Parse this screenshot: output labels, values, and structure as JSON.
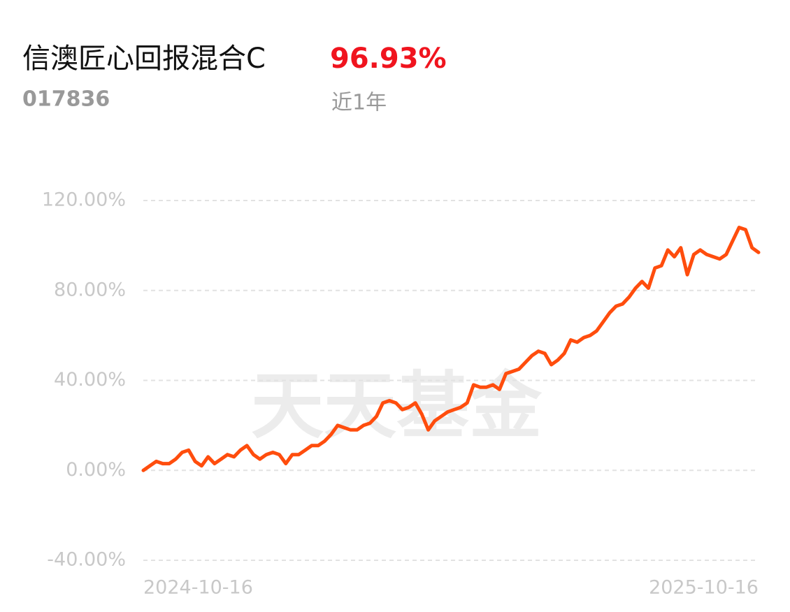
{
  "chart_data": {
    "type": "line",
    "title": "信澳匠心回报混合C",
    "code": "017836",
    "return_label": "96.93%",
    "period": "近1年",
    "watermark": "天天基金",
    "color": "#ff4d0d",
    "grid": true,
    "ylim": [
      -40,
      120
    ],
    "yticks": [
      {
        "value": -40,
        "label": "-40.00%"
      },
      {
        "value": 0,
        "label": "0.00%"
      },
      {
        "value": 40,
        "label": "40.00%"
      },
      {
        "value": 80,
        "label": "80.00%"
      },
      {
        "value": 120,
        "label": "120.00%"
      }
    ],
    "categories": [
      "2024-10-16",
      null,
      null,
      null,
      null,
      null,
      null,
      null,
      null,
      null,
      null,
      null,
      null,
      null,
      null,
      null,
      null,
      null,
      null,
      null,
      null,
      null,
      null,
      null,
      null,
      null,
      null,
      null,
      null,
      null,
      null,
      null,
      null,
      null,
      null,
      null,
      null,
      null,
      null,
      null,
      null,
      null,
      null,
      null,
      null,
      null,
      null,
      null,
      null,
      null,
      null,
      null,
      null,
      null,
      null,
      null,
      null,
      null,
      null,
      null,
      null,
      null,
      null,
      null,
      null,
      null,
      null,
      null,
      null,
      null,
      null,
      null,
      null,
      null,
      null,
      null,
      null,
      null,
      null,
      null,
      null,
      null,
      null,
      null,
      null,
      null,
      null,
      null,
      null,
      null,
      null,
      null,
      null,
      null,
      null,
      "2025-10-16"
    ],
    "values": [
      0,
      2,
      4,
      3,
      3,
      5,
      8,
      9,
      4,
      2,
      6,
      3,
      5,
      7,
      6,
      9,
      11,
      7,
      5,
      7,
      8,
      7,
      3,
      7,
      7,
      9,
      11,
      11,
      13,
      16,
      20,
      19,
      18,
      18,
      20,
      21,
      24,
      30,
      31,
      30,
      27,
      28,
      30,
      25,
      18,
      22,
      24,
      26,
      27,
      28,
      30,
      38,
      37,
      37,
      38,
      36,
      43,
      44,
      45,
      48,
      51,
      53,
      52,
      47,
      49,
      52,
      58,
      57,
      59,
      60,
      62,
      66,
      70,
      73,
      74,
      77,
      81,
      84,
      81,
      90,
      91,
      98,
      95,
      99,
      87,
      96,
      98,
      96,
      95,
      94,
      96,
      102,
      108,
      107,
      99,
      96.93
    ]
  }
}
